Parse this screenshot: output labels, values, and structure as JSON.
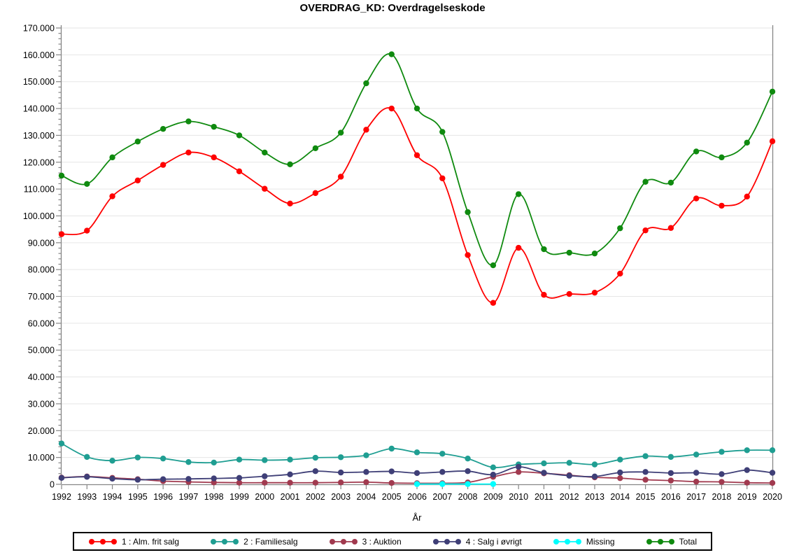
{
  "chart_data": {
    "type": "line",
    "title": "OVERDRAG_KD: Overdragelseskode",
    "xlabel": "År",
    "ylabel": "",
    "interpolation": "smooth",
    "grid": "horizontal-major",
    "legend_position": "bottom",
    "x": [
      1992,
      1993,
      1994,
      1995,
      1996,
      1997,
      1998,
      1999,
      2000,
      2001,
      2002,
      2003,
      2004,
      2005,
      2006,
      2007,
      2008,
      2009,
      2010,
      2011,
      2012,
      2013,
      2014,
      2015,
      2016,
      2017,
      2018,
      2019,
      2020
    ],
    "ylim": [
      0,
      170000
    ],
    "y_major_step": 10000,
    "y_minor_step": 2000,
    "axis_color": "#868686",
    "gridline_color": "#e6e6e6",
    "series": [
      {
        "name": "1 : Alm. frit salg",
        "color": "#ff0000",
        "values": [
          93200,
          94500,
          107300,
          113200,
          119000,
          123600,
          121800,
          116600,
          110100,
          104600,
          108500,
          114600,
          132100,
          140000,
          122600,
          114000,
          85400,
          67600,
          88100,
          70600,
          70900,
          71400,
          78500,
          94600,
          95500,
          106500,
          103800,
          107200,
          127800
        ]
      },
      {
        "name": "2 : Familiesalg",
        "color": "#1f9e92",
        "values": [
          15200,
          10200,
          8800,
          10000,
          9600,
          8300,
          8100,
          9200,
          9000,
          9200,
          9900,
          10100,
          10800,
          13300,
          11900,
          11400,
          9600,
          6300,
          7400,
          7800,
          8000,
          7400,
          9200,
          10500,
          10200,
          11100,
          12100,
          12700,
          12700
        ]
      },
      {
        "name": "3 : Auktion",
        "color": "#a13a4f",
        "values": [
          2500,
          2900,
          2400,
          1900,
          1200,
          900,
          700,
          600,
          600,
          600,
          600,
          700,
          800,
          500,
          400,
          400,
          700,
          2800,
          4600,
          4100,
          3400,
          2600,
          2300,
          1700,
          1400,
          1000,
          900,
          600,
          500
        ]
      },
      {
        "name": "4 : Salg i øvrigt",
        "color": "#3f3f77",
        "values": [
          2400,
          2800,
          2100,
          1700,
          1900,
          2000,
          2200,
          2400,
          3000,
          3700,
          4900,
          4400,
          4600,
          4800,
          4200,
          4600,
          4900,
          3600,
          6500,
          4300,
          3200,
          2900,
          4400,
          4600,
          4200,
          4300,
          3800,
          5300,
          4300
        ]
      },
      {
        "name": "Missing",
        "color": "#00ffff",
        "values": [
          null,
          null,
          null,
          null,
          null,
          null,
          null,
          null,
          null,
          null,
          null,
          null,
          null,
          null,
          100,
          100,
          100,
          100,
          null,
          null,
          null,
          null,
          null,
          null,
          null,
          null,
          null,
          null,
          null
        ]
      },
      {
        "name": "Total",
        "color": "#0f8a0f",
        "values": [
          115000,
          111900,
          121800,
          127700,
          132400,
          135200,
          133200,
          130000,
          123600,
          119200,
          125200,
          131000,
          149400,
          160200,
          140000,
          131300,
          101400,
          81600,
          108100,
          87600,
          86300,
          86000,
          95400,
          112700,
          112400,
          124000,
          121800,
          127300,
          146300
        ]
      }
    ]
  }
}
